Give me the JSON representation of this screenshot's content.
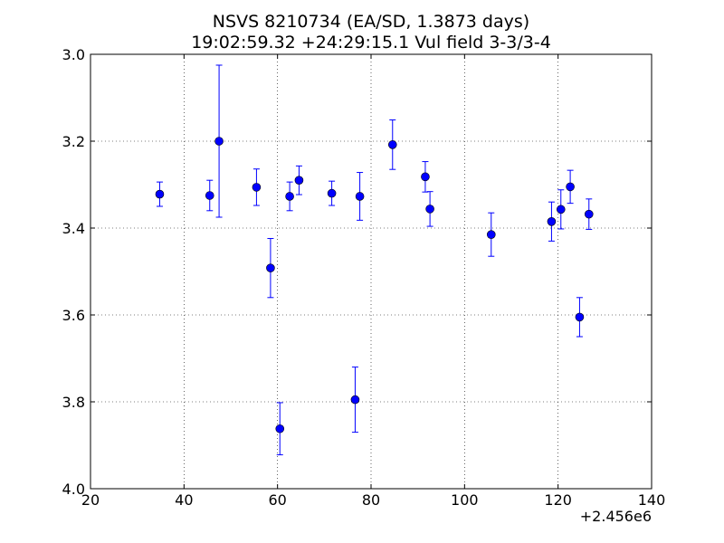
{
  "chart_data": {
    "type": "scatter",
    "title_lines": [
      "NSVS 8210734 (EA/SD, 1.3873 days)",
      "19:02:59.32 +24:29:15.1 Vul field 3-3/3-4"
    ],
    "xlabel": "",
    "ylabel": "",
    "x_offset_label": "+2.456e6",
    "xlim": [
      20,
      140
    ],
    "ylim": [
      4.0,
      3.0
    ],
    "y_inverted": true,
    "grid": true,
    "x_ticks": [
      20,
      40,
      60,
      80,
      100,
      120,
      140
    ],
    "x_tick_labels": [
      "20",
      "40",
      "60",
      "80",
      "100",
      "120",
      "140"
    ],
    "y_ticks": [
      3.0,
      3.2,
      3.4,
      3.6,
      3.8,
      4.0
    ],
    "y_tick_labels": [
      "3.0",
      "3.2",
      "3.4",
      "3.6",
      "3.8",
      "4.0"
    ],
    "marker_color": "#0000ff",
    "points": [
      {
        "x": 34.8,
        "y": 3.322,
        "err": 0.028
      },
      {
        "x": 45.5,
        "y": 3.325,
        "err": 0.035
      },
      {
        "x": 47.5,
        "y": 3.2,
        "err": 0.175
      },
      {
        "x": 55.5,
        "y": 3.306,
        "err": 0.042
      },
      {
        "x": 58.5,
        "y": 3.492,
        "err": 0.068
      },
      {
        "x": 60.5,
        "y": 3.862,
        "err": 0.06
      },
      {
        "x": 62.6,
        "y": 3.327,
        "err": 0.033
      },
      {
        "x": 64.6,
        "y": 3.29,
        "err": 0.033
      },
      {
        "x": 71.6,
        "y": 3.32,
        "err": 0.028
      },
      {
        "x": 76.6,
        "y": 3.795,
        "err": 0.075
      },
      {
        "x": 77.6,
        "y": 3.327,
        "err": 0.055
      },
      {
        "x": 84.6,
        "y": 3.208,
        "err": 0.057
      },
      {
        "x": 91.6,
        "y": 3.282,
        "err": 0.035
      },
      {
        "x": 92.6,
        "y": 3.356,
        "err": 0.04
      },
      {
        "x": 105.7,
        "y": 3.415,
        "err": 0.05
      },
      {
        "x": 118.6,
        "y": 3.385,
        "err": 0.045
      },
      {
        "x": 120.6,
        "y": 3.357,
        "err": 0.045
      },
      {
        "x": 122.6,
        "y": 3.305,
        "err": 0.038
      },
      {
        "x": 124.6,
        "y": 3.605,
        "err": 0.045
      },
      {
        "x": 126.6,
        "y": 3.368,
        "err": 0.035
      }
    ]
  }
}
